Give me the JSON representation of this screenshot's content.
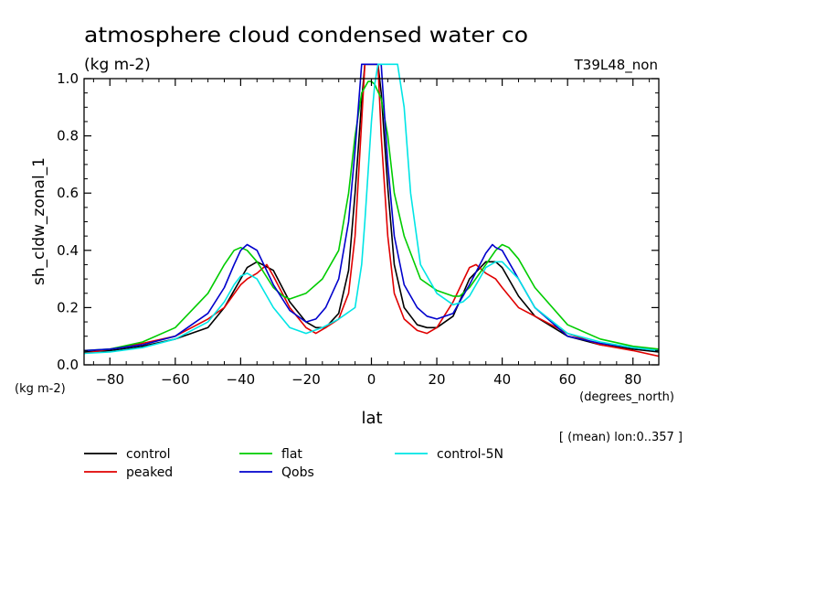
{
  "header": {
    "title": "atmosphere cloud condensed water co",
    "units": "(kg m-2)",
    "run_id": "T39L48_non"
  },
  "axes": {
    "ylabel": "sh_cldw_zonal_1",
    "xlabel": "lat",
    "y_units": "(kg m-2)",
    "x_units": "(degrees_north)",
    "note": "[ (mean) lon:0..357 ]"
  },
  "chart_data": {
    "type": "line",
    "title": "atmosphere cloud condensed water co",
    "xlabel": "lat",
    "ylabel": "sh_cldw_zonal_1",
    "xlim": [
      -87.9,
      87.9
    ],
    "ylim": [
      0.0,
      1.0
    ],
    "xticks": [
      -80,
      -60,
      -40,
      -20,
      0,
      20,
      40,
      60,
      80
    ],
    "xtick_labels": [
      "−80",
      "−60",
      "−40",
      "−20",
      "0",
      "20",
      "40",
      "60",
      "80"
    ],
    "yticks": [
      0.0,
      0.2,
      0.4,
      0.6,
      0.8,
      1.0
    ],
    "ytick_labels": [
      "0.0",
      "0.2",
      "0.4",
      "0.6",
      "0.8",
      "1.0"
    ],
    "grid": false,
    "legend_position": "bottom",
    "series": [
      {
        "name": "control",
        "color": "#000000",
        "x": [
          -87.9,
          -80,
          -70,
          -60,
          -50,
          -45,
          -40,
          -38,
          -35,
          -30,
          -25,
          -20,
          -17,
          -14,
          -10,
          -7,
          -5,
          -3,
          -2,
          -1,
          0,
          1,
          2,
          3,
          5,
          7,
          10,
          14,
          17,
          20,
          25,
          30,
          35,
          38,
          40,
          45,
          50,
          60,
          70,
          80,
          87.9
        ],
        "y": [
          0.045,
          0.05,
          0.065,
          0.09,
          0.13,
          0.2,
          0.3,
          0.34,
          0.36,
          0.33,
          0.22,
          0.15,
          0.13,
          0.13,
          0.18,
          0.33,
          0.6,
          0.92,
          1.05,
          1.05,
          1.05,
          1.05,
          1.05,
          0.95,
          0.62,
          0.35,
          0.2,
          0.14,
          0.13,
          0.13,
          0.17,
          0.3,
          0.36,
          0.36,
          0.34,
          0.24,
          0.17,
          0.1,
          0.07,
          0.055,
          0.045
        ]
      },
      {
        "name": "peaked",
        "color": "#e00000",
        "x": [
          -87.9,
          -80,
          -70,
          -60,
          -50,
          -45,
          -40,
          -38,
          -35,
          -32,
          -30,
          -25,
          -20,
          -17,
          -14,
          -10,
          -7,
          -5,
          -3,
          -2,
          -1,
          0,
          1,
          2,
          3,
          5,
          7,
          10,
          14,
          17,
          20,
          25,
          30,
          32,
          35,
          38,
          40,
          45,
          50,
          60,
          70,
          80,
          87.9
        ],
        "y": [
          0.04,
          0.055,
          0.075,
          0.1,
          0.16,
          0.2,
          0.28,
          0.3,
          0.32,
          0.35,
          0.31,
          0.2,
          0.13,
          0.11,
          0.13,
          0.16,
          0.25,
          0.45,
          0.85,
          1.05,
          1.05,
          1.05,
          1.05,
          1.05,
          0.8,
          0.45,
          0.25,
          0.16,
          0.12,
          0.11,
          0.13,
          0.22,
          0.34,
          0.35,
          0.32,
          0.3,
          0.27,
          0.2,
          0.17,
          0.11,
          0.07,
          0.05,
          0.03
        ]
      },
      {
        "name": "flat",
        "color": "#00cc00",
        "x": [
          -87.9,
          -80,
          -70,
          -60,
          -50,
          -45,
          -42,
          -40,
          -38,
          -35,
          -30,
          -27,
          -25,
          -20,
          -15,
          -10,
          -7,
          -5,
          -3,
          -1,
          0,
          1,
          3,
          5,
          7,
          10,
          15,
          20,
          25,
          27,
          30,
          35,
          38,
          40,
          42,
          45,
          50,
          60,
          70,
          80,
          87.9
        ],
        "y": [
          0.05,
          0.055,
          0.08,
          0.13,
          0.25,
          0.35,
          0.4,
          0.41,
          0.4,
          0.36,
          0.27,
          0.24,
          0.23,
          0.25,
          0.3,
          0.4,
          0.6,
          0.8,
          0.95,
          0.99,
          0.99,
          0.98,
          0.93,
          0.8,
          0.6,
          0.45,
          0.3,
          0.26,
          0.24,
          0.24,
          0.27,
          0.35,
          0.4,
          0.42,
          0.41,
          0.37,
          0.27,
          0.14,
          0.09,
          0.065,
          0.055
        ]
      },
      {
        "name": "Qobs",
        "color": "#0000cc",
        "x": [
          -87.9,
          -80,
          -70,
          -60,
          -50,
          -45,
          -42,
          -40,
          -38,
          -35,
          -30,
          -25,
          -20,
          -17,
          -14,
          -10,
          -7,
          -5,
          -3,
          -2,
          -1,
          0,
          1,
          2,
          3,
          5,
          7,
          10,
          14,
          17,
          20,
          25,
          30,
          35,
          37,
          38,
          40,
          45,
          50,
          60,
          70,
          80,
          87.9
        ],
        "y": [
          0.05,
          0.055,
          0.07,
          0.1,
          0.18,
          0.27,
          0.35,
          0.4,
          0.42,
          0.4,
          0.28,
          0.19,
          0.15,
          0.16,
          0.2,
          0.3,
          0.5,
          0.75,
          1.05,
          1.05,
          1.05,
          1.05,
          1.05,
          1.05,
          1.05,
          0.7,
          0.45,
          0.28,
          0.2,
          0.17,
          0.16,
          0.18,
          0.28,
          0.39,
          0.42,
          0.41,
          0.4,
          0.3,
          0.2,
          0.1,
          0.075,
          0.06,
          0.05
        ]
      },
      {
        "name": "control-5N",
        "color": "#00e5e5",
        "x": [
          -87.9,
          -80,
          -70,
          -60,
          -50,
          -45,
          -42,
          -40,
          -38,
          -35,
          -30,
          -25,
          -20,
          -15,
          -10,
          -5,
          -3,
          -2,
          0,
          1,
          2,
          3,
          4,
          5,
          6,
          7,
          8,
          10,
          12,
          15,
          20,
          25,
          28,
          30,
          33,
          35,
          38,
          40,
          45,
          50,
          60,
          70,
          80,
          87.9
        ],
        "y": [
          0.04,
          0.045,
          0.06,
          0.09,
          0.15,
          0.22,
          0.28,
          0.31,
          0.32,
          0.3,
          0.2,
          0.13,
          0.11,
          0.13,
          0.16,
          0.2,
          0.35,
          0.5,
          0.85,
          0.98,
          1.05,
          1.05,
          1.05,
          1.05,
          1.05,
          1.05,
          1.05,
          0.9,
          0.6,
          0.35,
          0.25,
          0.21,
          0.22,
          0.24,
          0.3,
          0.34,
          0.36,
          0.36,
          0.3,
          0.2,
          0.11,
          0.08,
          0.06,
          0.05
        ]
      }
    ]
  }
}
